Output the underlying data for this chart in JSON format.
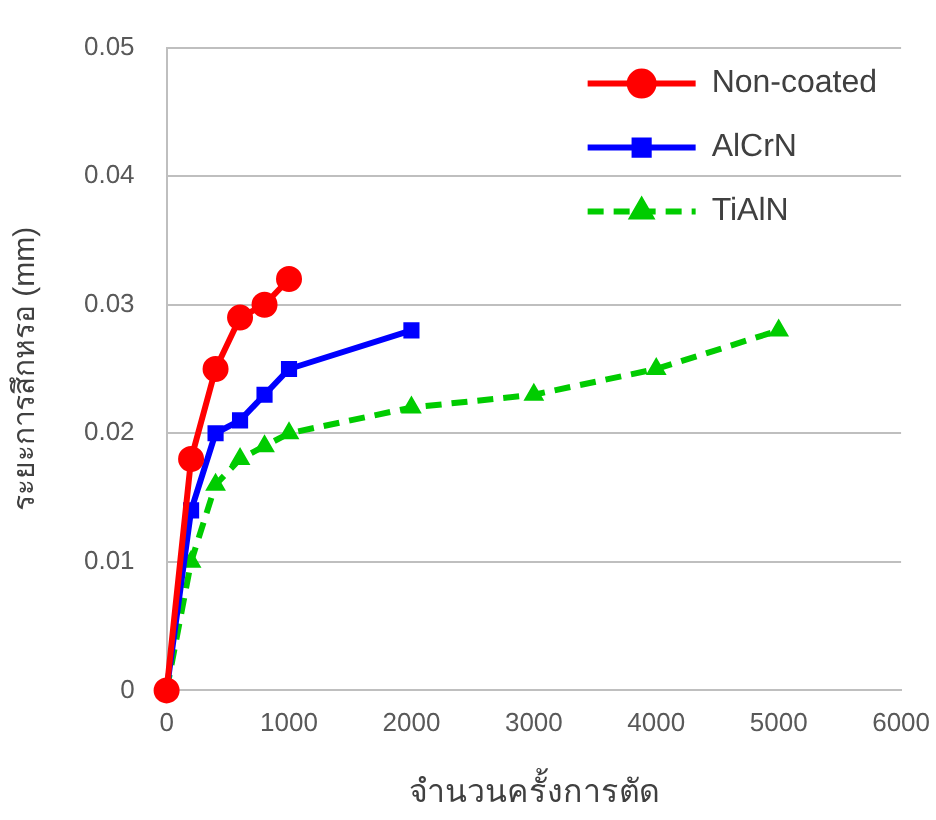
{
  "chart_data": {
    "type": "line",
    "xlabel": "จำนวนครั้งการตัด",
    "ylabel": "ระยะการสึกหรอ (mm)",
    "xlim": [
      0,
      6000
    ],
    "xticks": [
      0,
      1000,
      2000,
      3000,
      4000,
      5000,
      6000
    ],
    "ylim": [
      0,
      0.05
    ],
    "yticks": [
      0,
      0.01,
      0.02,
      0.03,
      0.04,
      0.05
    ],
    "grid": "y",
    "legend": "top right",
    "series": [
      {
        "name": "Non-coated",
        "color": "#ff0000",
        "marker": "circle",
        "line_style": "solid",
        "x": [
          0,
          200,
          400,
          600,
          800,
          1000
        ],
        "values": [
          0,
          0.018,
          0.025,
          0.029,
          0.03,
          0.032
        ]
      },
      {
        "name": "AlCrN",
        "color": "#0000ff",
        "marker": "square",
        "line_style": "solid",
        "x": [
          0,
          200,
          400,
          600,
          800,
          1000,
          2000
        ],
        "values": [
          0,
          0.014,
          0.02,
          0.021,
          0.023,
          0.025,
          0.028
        ]
      },
      {
        "name": "TiAlN",
        "color": "#00cc00",
        "marker": "triangle",
        "line_style": "dashed",
        "x": [
          0,
          200,
          400,
          600,
          800,
          1000,
          2000,
          3000,
          4000,
          5000
        ],
        "values": [
          0,
          0.01,
          0.016,
          0.018,
          0.019,
          0.02,
          0.022,
          0.023,
          0.025,
          0.028
        ]
      }
    ]
  }
}
